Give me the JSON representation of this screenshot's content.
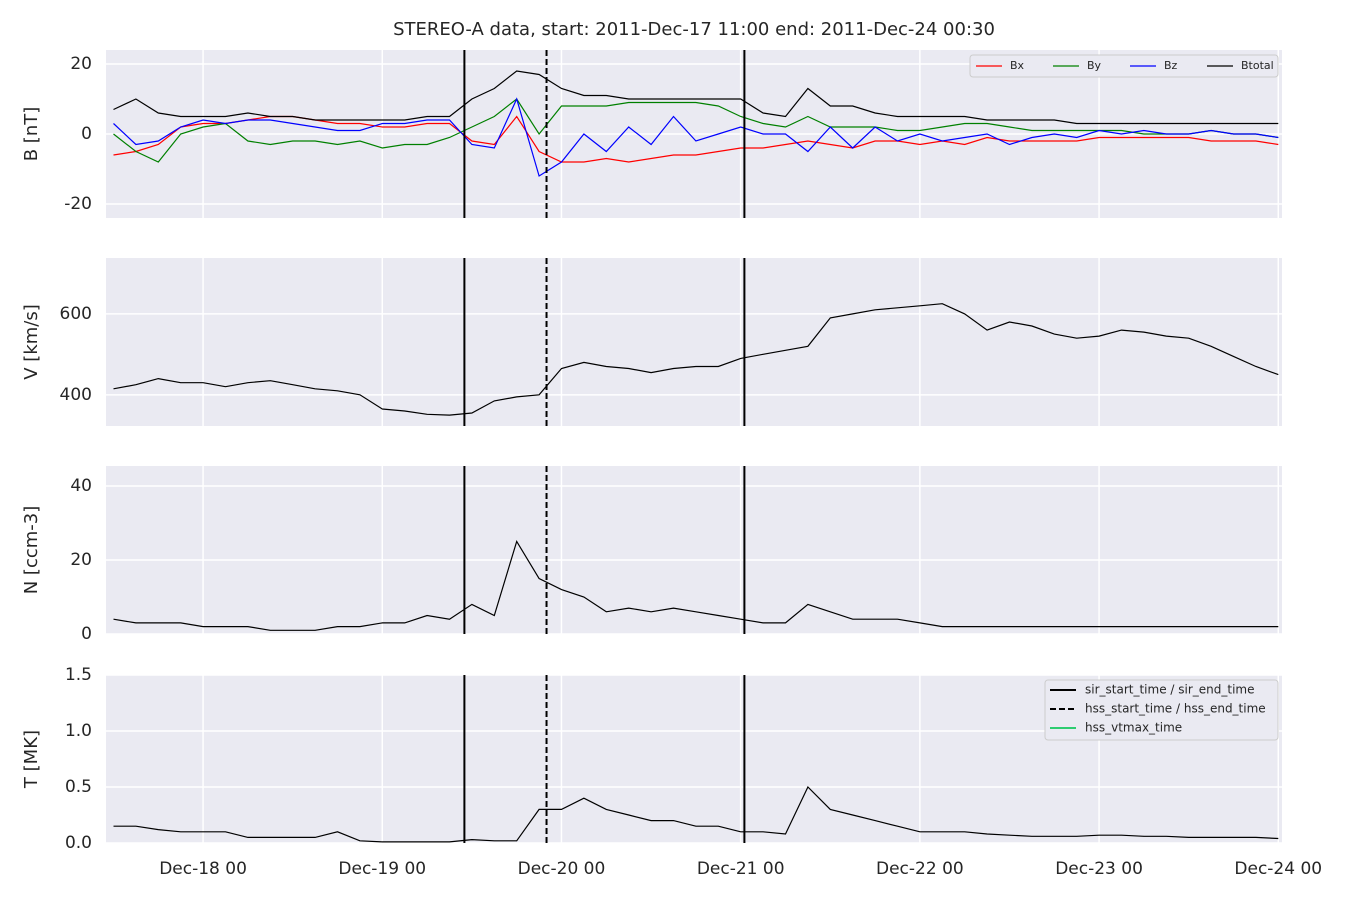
{
  "title": "STEREO-A data, start: 2011-Dec-17 11:00  end: 2011-Dec-24 00:30",
  "xlim": [
    "Dec-17 11:00",
    "Dec-24 00:30"
  ],
  "xticks": [
    {
      "value": "Dec-18 00:00",
      "label": "Dec-18 00"
    },
    {
      "value": "Dec-19 00:00",
      "label": "Dec-19 00"
    },
    {
      "value": "Dec-20 00:00",
      "label": "Dec-20 00"
    },
    {
      "value": "Dec-21 00:00",
      "label": "Dec-21 00"
    },
    {
      "value": "Dec-22 00:00",
      "label": "Dec-22 00"
    },
    {
      "value": "Dec-23 00:00",
      "label": "Dec-23 00"
    },
    {
      "value": "Dec-24 00:00",
      "label": "Dec-24 00"
    }
  ],
  "grid": true,
  "x": [
    "Dec-17 12:00",
    "Dec-17 15:00",
    "Dec-17 18:00",
    "Dec-17 21:00",
    "Dec-18 00:00",
    "Dec-18 03:00",
    "Dec-18 06:00",
    "Dec-18 09:00",
    "Dec-18 12:00",
    "Dec-18 15:00",
    "Dec-18 18:00",
    "Dec-18 21:00",
    "Dec-19 00:00",
    "Dec-19 03:00",
    "Dec-19 06:00",
    "Dec-19 09:00",
    "Dec-19 12:00",
    "Dec-19 15:00",
    "Dec-19 18:00",
    "Dec-19 21:00",
    "Dec-20 00:00",
    "Dec-20 03:00",
    "Dec-20 06:00",
    "Dec-20 09:00",
    "Dec-20 12:00",
    "Dec-20 15:00",
    "Dec-20 18:00",
    "Dec-20 21:00",
    "Dec-21 00:00",
    "Dec-21 03:00",
    "Dec-21 06:00",
    "Dec-21 09:00",
    "Dec-21 12:00",
    "Dec-21 15:00",
    "Dec-21 18:00",
    "Dec-21 21:00",
    "Dec-22 00:00",
    "Dec-22 03:00",
    "Dec-22 06:00",
    "Dec-22 09:00",
    "Dec-22 12:00",
    "Dec-22 15:00",
    "Dec-22 18:00",
    "Dec-22 21:00",
    "Dec-23 00:00",
    "Dec-23 03:00",
    "Dec-23 06:00",
    "Dec-23 09:00",
    "Dec-23 12:00",
    "Dec-23 15:00",
    "Dec-23 18:00",
    "Dec-23 21:00",
    "Dec-24 00:00"
  ],
  "events": [
    {
      "name": "sir_start_time / sir_end_time",
      "color": "#000000",
      "dashed": false,
      "times": [
        "Dec-19 11:00",
        "Dec-21 00:30"
      ]
    },
    {
      "name": "hss_start_time / hss_end_time",
      "color": "#000000",
      "dashed": true,
      "times": [
        "Dec-19 22:00"
      ]
    },
    {
      "name": "hss_vtmax_time",
      "color": "#2ecc71",
      "dashed": false,
      "times": []
    }
  ],
  "chart_data": [
    {
      "type": "line",
      "ylabel": "B [nT]",
      "ylim": [
        -24,
        24
      ],
      "yticks": [
        -20,
        0,
        20
      ],
      "legend": "upper right",
      "series": [
        {
          "name": "Bx",
          "color": "#ff0000",
          "values": [
            -6,
            -5,
            -3,
            2,
            3,
            3,
            4,
            5,
            5,
            4,
            3,
            3,
            2,
            2,
            3,
            3,
            -2,
            -3,
            5,
            -5,
            -8,
            -8,
            -7,
            -8,
            -7,
            -6,
            -6,
            -5,
            -4,
            -4,
            -3,
            -2,
            -3,
            -4,
            -2,
            -2,
            -3,
            -2,
            -3,
            -1,
            -2,
            -2,
            -2,
            -2,
            -1,
            -1,
            -1,
            -1,
            -1,
            -2,
            -2,
            -2,
            -3
          ]
        },
        {
          "name": "By",
          "color": "#008000",
          "values": [
            0,
            -5,
            -8,
            0,
            2,
            3,
            -2,
            -3,
            -2,
            -2,
            -3,
            -2,
            -4,
            -3,
            -3,
            -1,
            2,
            5,
            10,
            0,
            8,
            8,
            8,
            9,
            9,
            9,
            9,
            8,
            5,
            3,
            2,
            5,
            2,
            2,
            2,
            1,
            1,
            2,
            3,
            3,
            2,
            1,
            1,
            1,
            1,
            1,
            0,
            0,
            0,
            1,
            0,
            0,
            -1
          ]
        },
        {
          "name": "Bz",
          "color": "#0000ff",
          "values": [
            3,
            -3,
            -2,
            2,
            4,
            3,
            4,
            4,
            3,
            2,
            1,
            1,
            3,
            3,
            4,
            4,
            -3,
            -4,
            10,
            -12,
            -8,
            0,
            -5,
            2,
            -3,
            5,
            -2,
            0,
            2,
            0,
            0,
            -5,
            2,
            -4,
            2,
            -2,
            0,
            -2,
            -1,
            0,
            -3,
            -1,
            0,
            -1,
            1,
            0,
            1,
            0,
            0,
            1,
            0,
            0,
            -1
          ]
        },
        {
          "name": "Btotal",
          "color": "#000000",
          "values": [
            7,
            10,
            6,
            5,
            5,
            5,
            6,
            5,
            5,
            4,
            4,
            4,
            4,
            4,
            5,
            5,
            10,
            13,
            18,
            17,
            13,
            11,
            11,
            10,
            10,
            10,
            10,
            10,
            10,
            6,
            5,
            13,
            8,
            8,
            6,
            5,
            5,
            5,
            5,
            4,
            4,
            4,
            4,
            3,
            3,
            3,
            3,
            3,
            3,
            3,
            3,
            3,
            3
          ]
        }
      ]
    },
    {
      "type": "line",
      "ylabel": "V [km/s]",
      "ylim": [
        323,
        738
      ],
      "yticks": [
        400,
        600
      ],
      "series": [
        {
          "color": "#000000",
          "values": [
            415,
            425,
            440,
            430,
            430,
            420,
            430,
            435,
            425,
            415,
            410,
            400,
            365,
            360,
            352,
            350,
            355,
            385,
            395,
            400,
            465,
            480,
            470,
            465,
            455,
            465,
            470,
            470,
            490,
            500,
            510,
            520,
            590,
            600,
            610,
            615,
            620,
            625,
            600,
            560,
            580,
            570,
            550,
            540,
            545,
            560,
            555,
            545,
            540,
            520,
            495,
            470,
            450
          ]
        }
      ]
    },
    {
      "type": "line",
      "ylabel": "N [ccm-3]",
      "ylim": [
        0,
        45.4
      ],
      "yticks": [
        0,
        20,
        40
      ],
      "series": [
        {
          "color": "#000000",
          "values": [
            4,
            3,
            3,
            3,
            2,
            2,
            2,
            1,
            1,
            1,
            2,
            2,
            3,
            3,
            5,
            4,
            8,
            5,
            25,
            15,
            12,
            10,
            6,
            7,
            6,
            7,
            6,
            5,
            4,
            3,
            3,
            8,
            6,
            4,
            4,
            4,
            3,
            2,
            2,
            2,
            2,
            2,
            2,
            2,
            2,
            2,
            2,
            2,
            2,
            2,
            2,
            2,
            2
          ]
        }
      ]
    },
    {
      "type": "line",
      "ylabel": "T [MK]",
      "ylim": [
        0,
        1.5
      ],
      "yticks": [
        {
          "value": 0,
          "label": "0.0"
        },
        0.5,
        {
          "value": 1,
          "label": "1.0"
        },
        1.5
      ],
      "event_legend": "upper right",
      "series": [
        {
          "color": "#000000",
          "values": [
            0.15,
            0.15,
            0.12,
            0.1,
            0.1,
            0.1,
            0.05,
            0.05,
            0.05,
            0.05,
            0.1,
            0.02,
            0.01,
            0.01,
            0.01,
            0.01,
            0.03,
            0.02,
            0.02,
            0.3,
            0.3,
            0.4,
            0.3,
            0.25,
            0.2,
            0.2,
            0.15,
            0.15,
            0.1,
            0.1,
            0.08,
            0.5,
            0.3,
            0.25,
            0.2,
            0.15,
            0.1,
            0.1,
            0.1,
            0.08,
            0.07,
            0.06,
            0.06,
            0.06,
            0.07,
            0.07,
            0.06,
            0.06,
            0.05,
            0.05,
            0.05,
            0.05,
            0.04
          ]
        }
      ]
    }
  ]
}
